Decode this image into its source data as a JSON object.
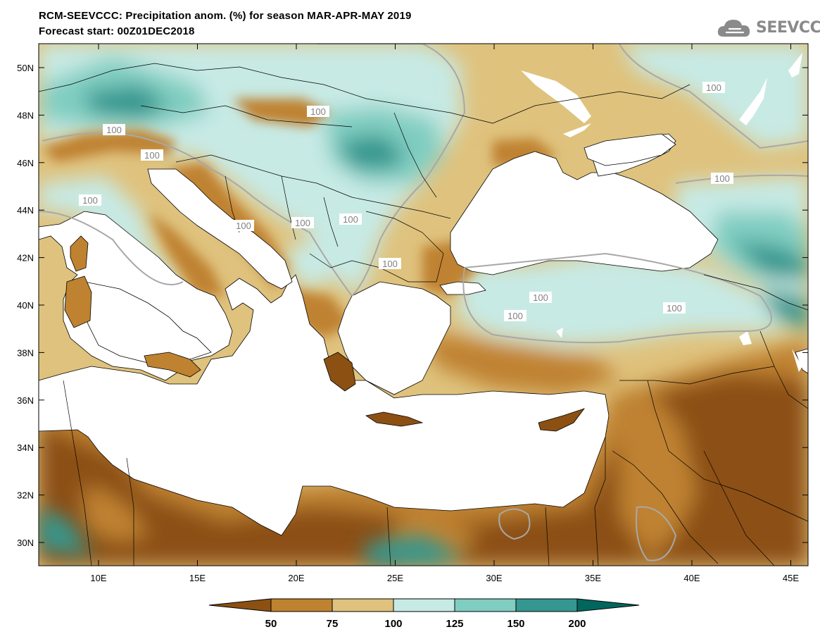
{
  "header": {
    "title_line1": "RCM-SEEVCCC: Precipitation anom. (%) for season MAR-APR-MAY 2019",
    "title_line2": "Forecast start: 00Z01DEC2018"
  },
  "logo": {
    "text": "SEEVCCC",
    "icon": "cloud-logo-icon"
  },
  "map": {
    "x_axis_labels": [
      "10E",
      "15E",
      "20E",
      "25E",
      "30E",
      "35E",
      "40E",
      "45E"
    ],
    "y_axis_labels": [
      "50N",
      "48N",
      "46N",
      "44N",
      "42N",
      "40N",
      "38N",
      "36N",
      "34N",
      "32N",
      "30N"
    ],
    "contour_labels": [
      "100",
      "100",
      "100",
      "100",
      "100",
      "100",
      "100",
      "100",
      "100",
      "100",
      "100",
      "100",
      "100",
      "100"
    ],
    "colors": {
      "below_50": "#8c5012",
      "50_75": "#bf8230",
      "75_100": "#dfc27d",
      "100_125": "#c7eae5",
      "125_150": "#80cdc1",
      "150_200": "#35978f",
      "above_200": "#01665e",
      "sea": "#ffffff",
      "contour_100": "#a8a8a8",
      "borders": "#000000"
    }
  },
  "colorbar": {
    "tick_labels": [
      "50",
      "75",
      "100",
      "125",
      "150",
      "200"
    ],
    "colors": [
      "#8c5012",
      "#bf8230",
      "#dfc27d",
      "#c7eae5",
      "#80cdc1",
      "#35978f",
      "#01665e"
    ]
  }
}
